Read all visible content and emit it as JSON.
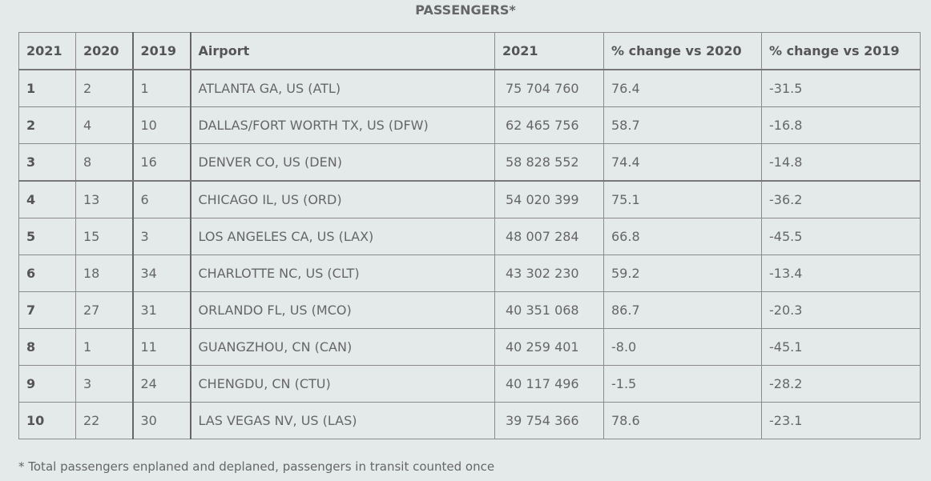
{
  "title": "PASSENGERS*",
  "headers": {
    "rank2021": "2021",
    "rank2020": "2020",
    "rank2019": "2019",
    "airport": "Airport",
    "pax2021": "2021",
    "change2020": "% change vs 2020",
    "change2019": "% change vs 2019"
  },
  "rows": [
    {
      "r2021": "1",
      "r2020": "2",
      "r2019": "1",
      "airport": "ATLANTA GA, US (ATL)",
      "pax": "75 704 760",
      "c2020": "76.4",
      "c2019": "-31.5"
    },
    {
      "r2021": "2",
      "r2020": "4",
      "r2019": "10",
      "airport": "DALLAS/FORT WORTH TX, US (DFW)",
      "pax": "62 465 756",
      "c2020": "58.7",
      "c2019": "-16.8"
    },
    {
      "r2021": "3",
      "r2020": "8",
      "r2019": "16",
      "airport": "DENVER CO, US (DEN)",
      "pax": "58 828 552",
      "c2020": "74.4",
      "c2019": "-14.8"
    },
    {
      "r2021": "4",
      "r2020": "13",
      "r2019": "6",
      "airport": "CHICAGO IL, US (ORD)",
      "pax": "54 020 399",
      "c2020": "75.1",
      "c2019": "-36.2"
    },
    {
      "r2021": "5",
      "r2020": "15",
      "r2019": "3",
      "airport": "LOS ANGELES CA, US (LAX)",
      "pax": "48 007 284",
      "c2020": "66.8",
      "c2019": "-45.5"
    },
    {
      "r2021": "6",
      "r2020": "18",
      "r2019": "34",
      "airport": "CHARLOTTE NC, US (CLT)",
      "pax": "43 302 230",
      "c2020": "59.2",
      "c2019": "-13.4"
    },
    {
      "r2021": "7",
      "r2020": "27",
      "r2019": "31",
      "airport": "ORLANDO FL, US (MCO)",
      "pax": "40 351 068",
      "c2020": "86.7",
      "c2019": "-20.3"
    },
    {
      "r2021": "8",
      "r2020": "1",
      "r2019": "11",
      "airport": "GUANGZHOU, CN (CAN)",
      "pax": "40 259 401",
      "c2020": "-8.0",
      "c2019": "-45.1"
    },
    {
      "r2021": "9",
      "r2020": "3",
      "r2019": "24",
      "airport": "CHENGDU, CN (CTU)",
      "pax": "40 117 496",
      "c2020": "-1.5",
      "c2019": "-28.2"
    },
    {
      "r2021": "10",
      "r2020": "22",
      "r2019": "30",
      "airport": "LAS VEGAS NV, US (LAS)",
      "pax": "39 754 366",
      "c2020": "78.6",
      "c2019": "-23.1"
    }
  ],
  "footnote": "* Total passengers enplaned and deplaned, passengers in transit counted once"
}
